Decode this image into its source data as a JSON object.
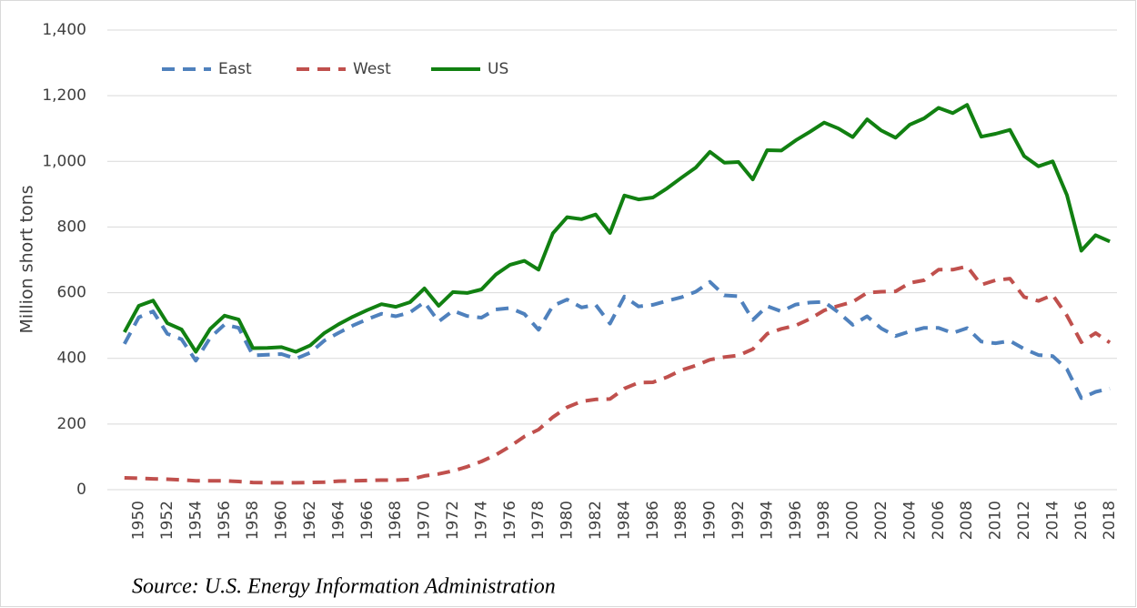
{
  "chart_data": {
    "type": "line",
    "y_label": "Million short tons",
    "source": "Source: U.S. Energy Information Administration",
    "categories": [
      null,
      "1950",
      null,
      "1952",
      null,
      "1954",
      null,
      "1956",
      null,
      "1958",
      null,
      "1960",
      null,
      "1962",
      null,
      "1964",
      null,
      "1966",
      null,
      "1968",
      null,
      "1970",
      null,
      "1972",
      null,
      "1974",
      null,
      "1976",
      null,
      "1978",
      null,
      "1980",
      null,
      "1982",
      null,
      "1984",
      null,
      "1986",
      null,
      "1988",
      null,
      "1990",
      null,
      "1992",
      null,
      "1994",
      null,
      "1996",
      null,
      "1998",
      null,
      "2000",
      null,
      "2002",
      null,
      "2004",
      null,
      "2006",
      null,
      "2008",
      null,
      "2010",
      null,
      "2012",
      null,
      "2014",
      null,
      "2016",
      null,
      "2018"
    ],
    "series": [
      {
        "name": "East",
        "color": "#4f81bd",
        "dash": true,
        "values": [
          444,
          525,
          543,
          475,
          458,
          393,
          463,
          503,
          493,
          409,
          411,
          413,
          399,
          417,
          454,
          478,
          500,
          519,
          536,
          528,
          540,
          571,
          512,
          545,
          529,
          524,
          549,
          553,
          535,
          487,
          560,
          579,
          555,
          563,
          506,
          588,
          558,
          563,
          575,
          586,
          603,
          633,
          592,
          589,
          517,
          559,
          543,
          564,
          570,
          572,
          540,
          502,
          528,
          491,
          468,
          482,
          493,
          493,
          477,
          492,
          451,
          446,
          453,
          429,
          410,
          407,
          367,
          279,
          298,
          308
        ]
      },
      {
        "name": "West",
        "color": "#c0504d",
        "dash": true,
        "values": [
          36,
          35,
          33,
          32,
          30,
          27,
          27,
          27,
          25,
          22,
          21,
          21,
          21,
          22,
          23,
          26,
          27,
          28,
          29,
          29,
          31,
          42,
          48,
          57,
          70,
          86,
          106,
          132,
          162,
          183,
          221,
          251,
          269,
          275,
          276,
          308,
          326,
          327,
          343,
          364,
          378,
          396,
          404,
          409,
          428,
          475,
          490,
          500,
          520,
          546,
          560,
          572,
          600,
          603,
          604,
          630,
          638,
          670,
          670,
          680,
          624,
          638,
          643,
          587,
          575,
          593,
          530,
          449,
          477,
          448
        ]
      },
      {
        "name": "US",
        "color": "#118011",
        "dash": false,
        "values": [
          480,
          560,
          576,
          507,
          488,
          420,
          490,
          530,
          518,
          431,
          432,
          434,
          420,
          439,
          477,
          504,
          527,
          547,
          565,
          557,
          571,
          613,
          560,
          602,
          599,
          610,
          655,
          685,
          697,
          670,
          781,
          830,
          824,
          838,
          782,
          896,
          884,
          890,
          918,
          950,
          981,
          1029,
          996,
          998,
          945,
          1034,
          1033,
          1064,
          1090,
          1118,
          1100,
          1074,
          1128,
          1094,
          1072,
          1112,
          1131,
          1163,
          1147,
          1172,
          1075,
          1084,
          1096,
          1016,
          985,
          1000,
          897,
          728,
          775,
          756
        ]
      }
    ],
    "ylim": [
      0,
      1400
    ],
    "yticks": [
      0,
      200,
      400,
      600,
      800,
      {
        "value": 1000,
        "label": "1,000"
      },
      {
        "value": 1200,
        "label": "1,200"
      },
      {
        "value": 1400,
        "label": "1,400"
      }
    ],
    "grid": true,
    "legend": "top-left"
  }
}
